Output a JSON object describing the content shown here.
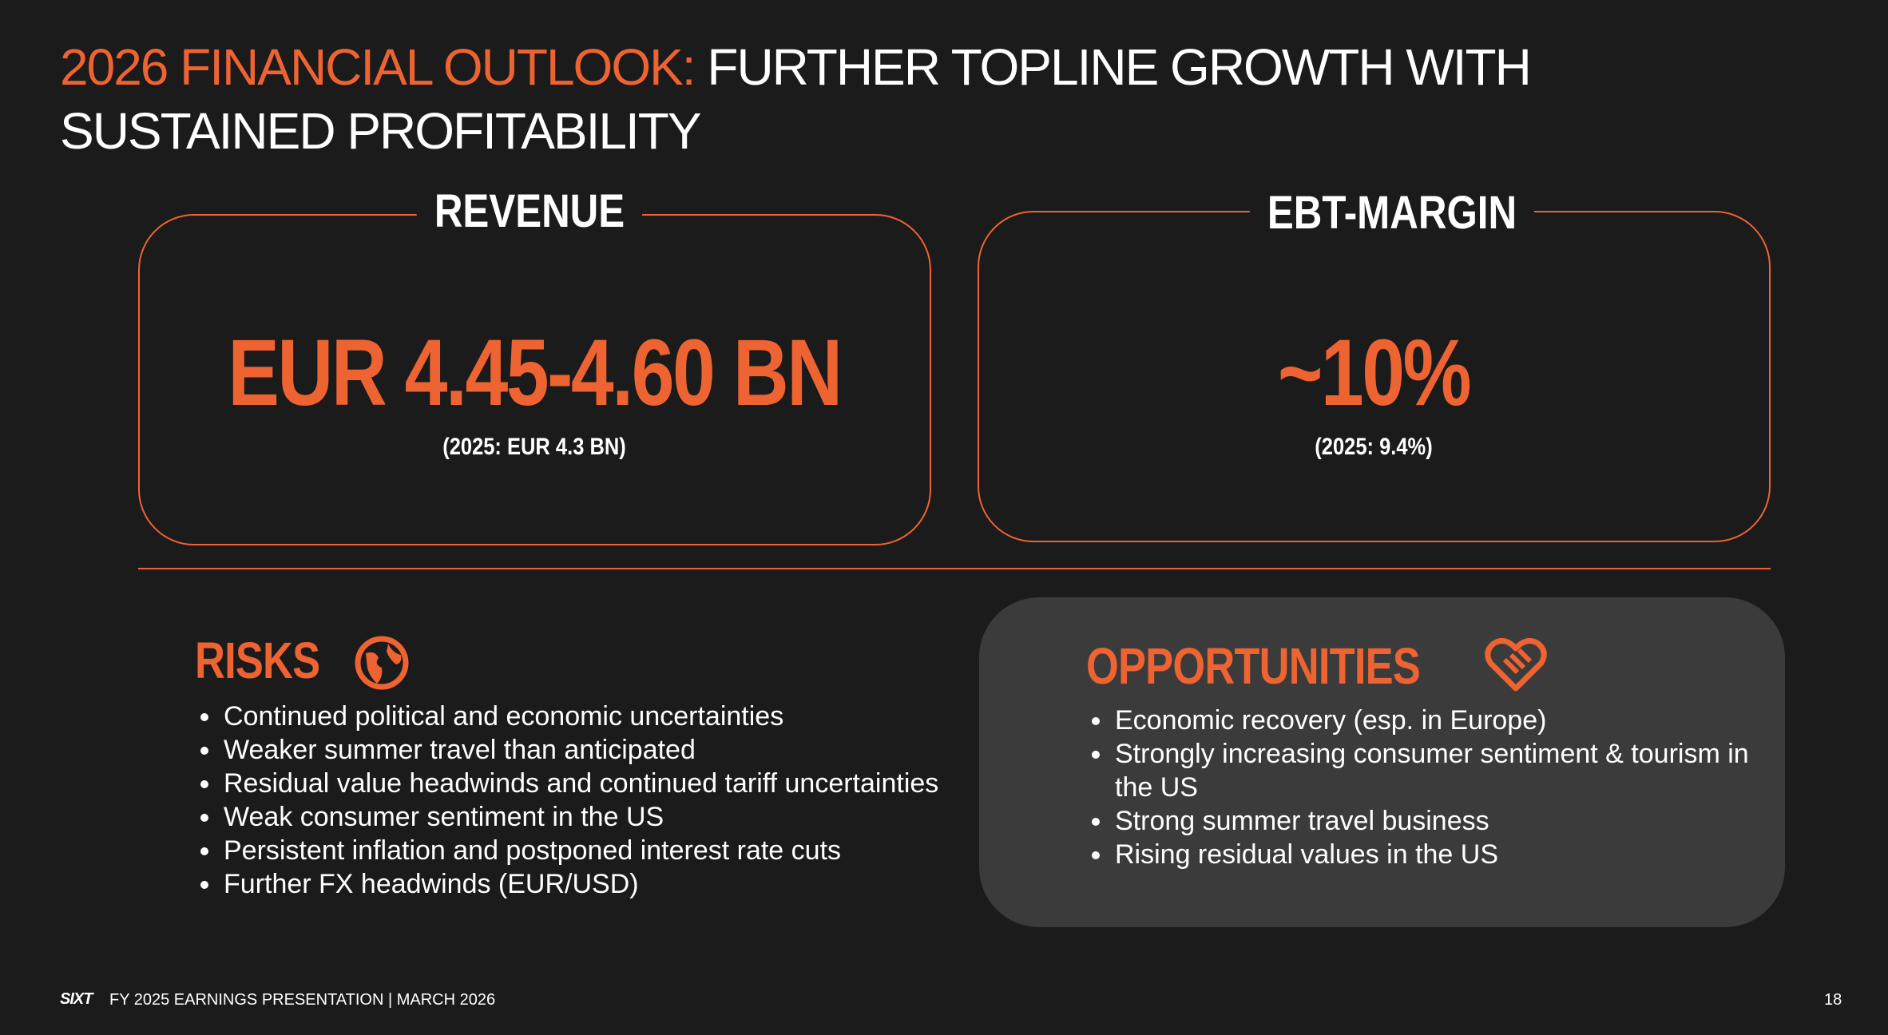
{
  "header": {
    "title_highlight": "2026 FINANCIAL OUTLOOK:",
    "title_rest": "FURTHER TOPLINE GROWTH WITH SUSTAINED PROFITABILITY"
  },
  "revenue": {
    "label": "REVENUE",
    "value": "EUR 4.45-4.60 BN",
    "previous": "(2025: EUR 4.3 BN)"
  },
  "ebt_margin": {
    "label": "EBT-MARGIN",
    "value": "~10%",
    "previous": "(2025: 9.4%)"
  },
  "risks": {
    "title": "RISKS",
    "items": [
      "Continued political and economic uncertainties",
      "Weaker summer travel than anticipated",
      "Residual value headwinds and continued tariff uncertainties",
      "Weak consumer sentiment in the US",
      "Persistent inflation and postponed interest rate cuts",
      "Further FX headwinds (EUR/USD)"
    ]
  },
  "opportunities": {
    "title": "OPPORTUNITIES",
    "items": [
      "Economic recovery (esp. in Europe)",
      "Strongly increasing consumer sentiment & tourism in the US",
      "Strong summer travel business",
      "Rising residual values in the US"
    ]
  },
  "footer": {
    "logo": "SIXT",
    "text": "FY 2025 EARNINGS PRESENTATION | MARCH 2026",
    "page": "18"
  }
}
